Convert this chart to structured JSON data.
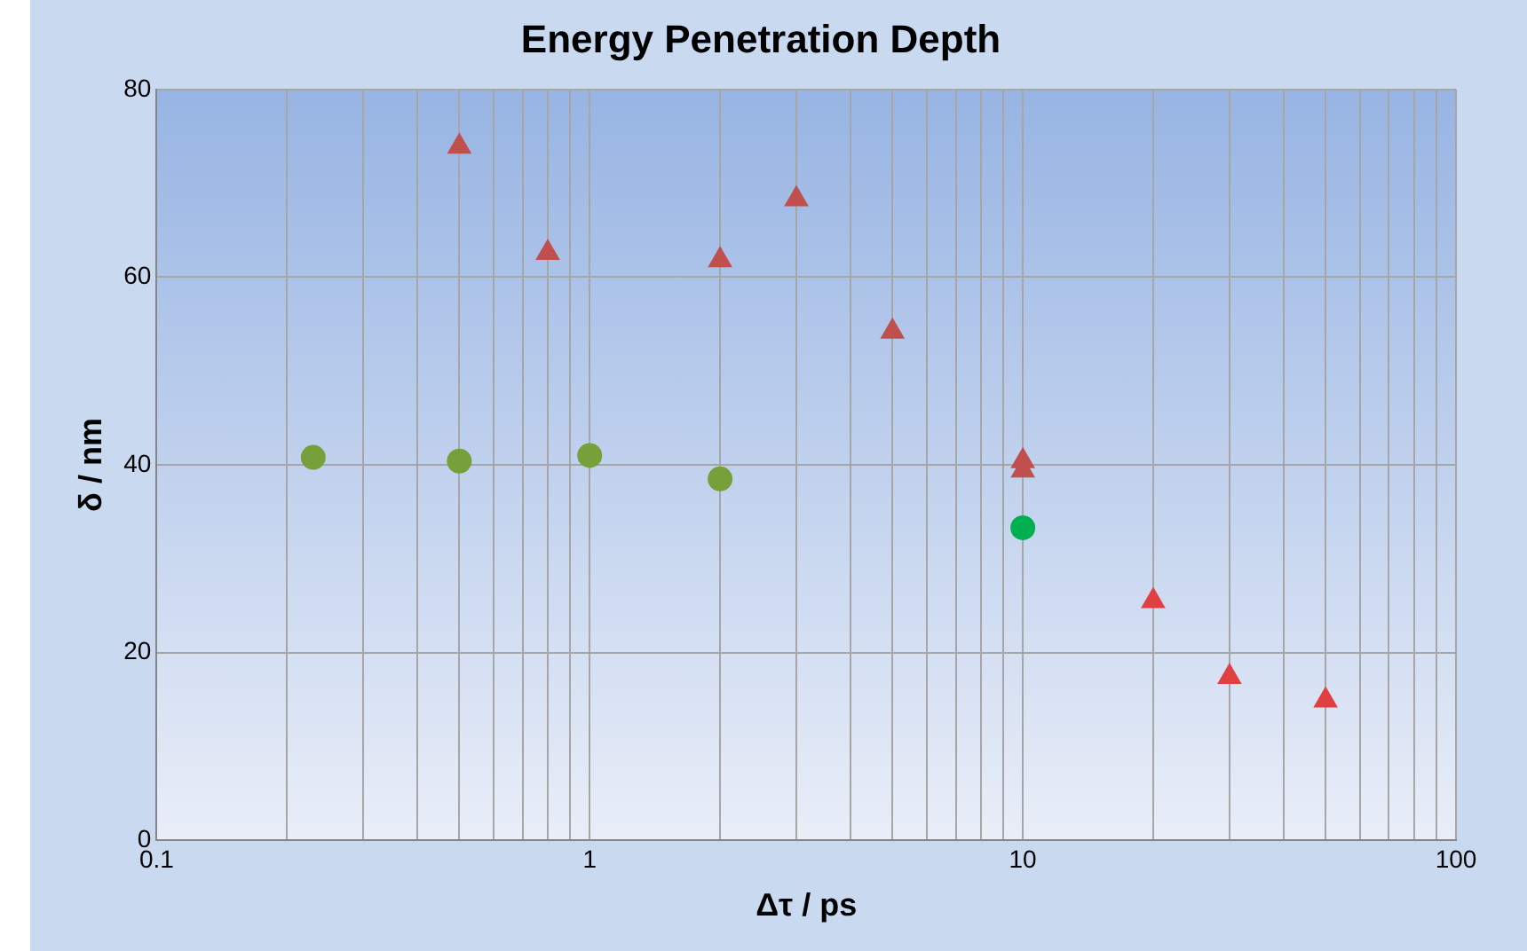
{
  "chart_data": {
    "type": "scatter",
    "title": "Energy Penetration Depth",
    "xlabel": "Δτ / ps",
    "ylabel": "δ / nm",
    "log": "x",
    "grid": true,
    "legend": false,
    "xlim": [
      0.1,
      100
    ],
    "ylim": [
      0,
      80
    ],
    "yticks": [
      0,
      20,
      40,
      60,
      80
    ],
    "xticks": [
      0.1,
      {
        "value": 0.2,
        "label": null
      },
      {
        "value": 0.3,
        "label": null
      },
      {
        "value": 0.4,
        "label": null
      },
      {
        "value": 0.5,
        "label": null
      },
      {
        "value": 0.6,
        "label": null
      },
      {
        "value": 0.7,
        "label": null
      },
      {
        "value": 0.8,
        "label": null
      },
      {
        "value": 0.9,
        "label": null
      },
      1,
      {
        "value": 2,
        "label": null
      },
      {
        "value": 3,
        "label": null
      },
      {
        "value": 4,
        "label": null
      },
      {
        "value": 5,
        "label": null
      },
      {
        "value": 6,
        "label": null
      },
      {
        "value": 7,
        "label": null
      },
      {
        "value": 8,
        "label": null
      },
      {
        "value": 9,
        "label": null
      },
      10,
      {
        "value": 20,
        "label": null
      },
      {
        "value": 30,
        "label": null
      },
      {
        "value": 40,
        "label": null
      },
      {
        "value": 50,
        "label": null
      },
      {
        "value": 60,
        "label": null
      },
      {
        "value": 70,
        "label": null
      },
      {
        "value": 80,
        "label": null
      },
      {
        "value": 90,
        "label": null
      },
      100
    ],
    "series": [
      {
        "color": "#77a03a",
        "marker": "circle",
        "x": [
          0.23,
          0.5,
          1,
          2
        ],
        "values": [
          40.8,
          40.4,
          41,
          38.5
        ]
      },
      {
        "color": "#00b050",
        "marker": "circle",
        "x": [
          10
        ],
        "values": [
          33.3
        ]
      },
      {
        "color": "#c0504d",
        "marker": "triangle",
        "x": [
          0.5,
          0.8,
          2,
          3,
          5,
          10,
          10
        ],
        "values": [
          73.9,
          62.6,
          61.8,
          68.3,
          54.2,
          40.4,
          39.4
        ]
      },
      {
        "color": "#e04040",
        "marker": "triangle",
        "x": [
          20,
          30,
          50
        ],
        "values": [
          25.5,
          17.4,
          14.9
        ]
      }
    ]
  }
}
